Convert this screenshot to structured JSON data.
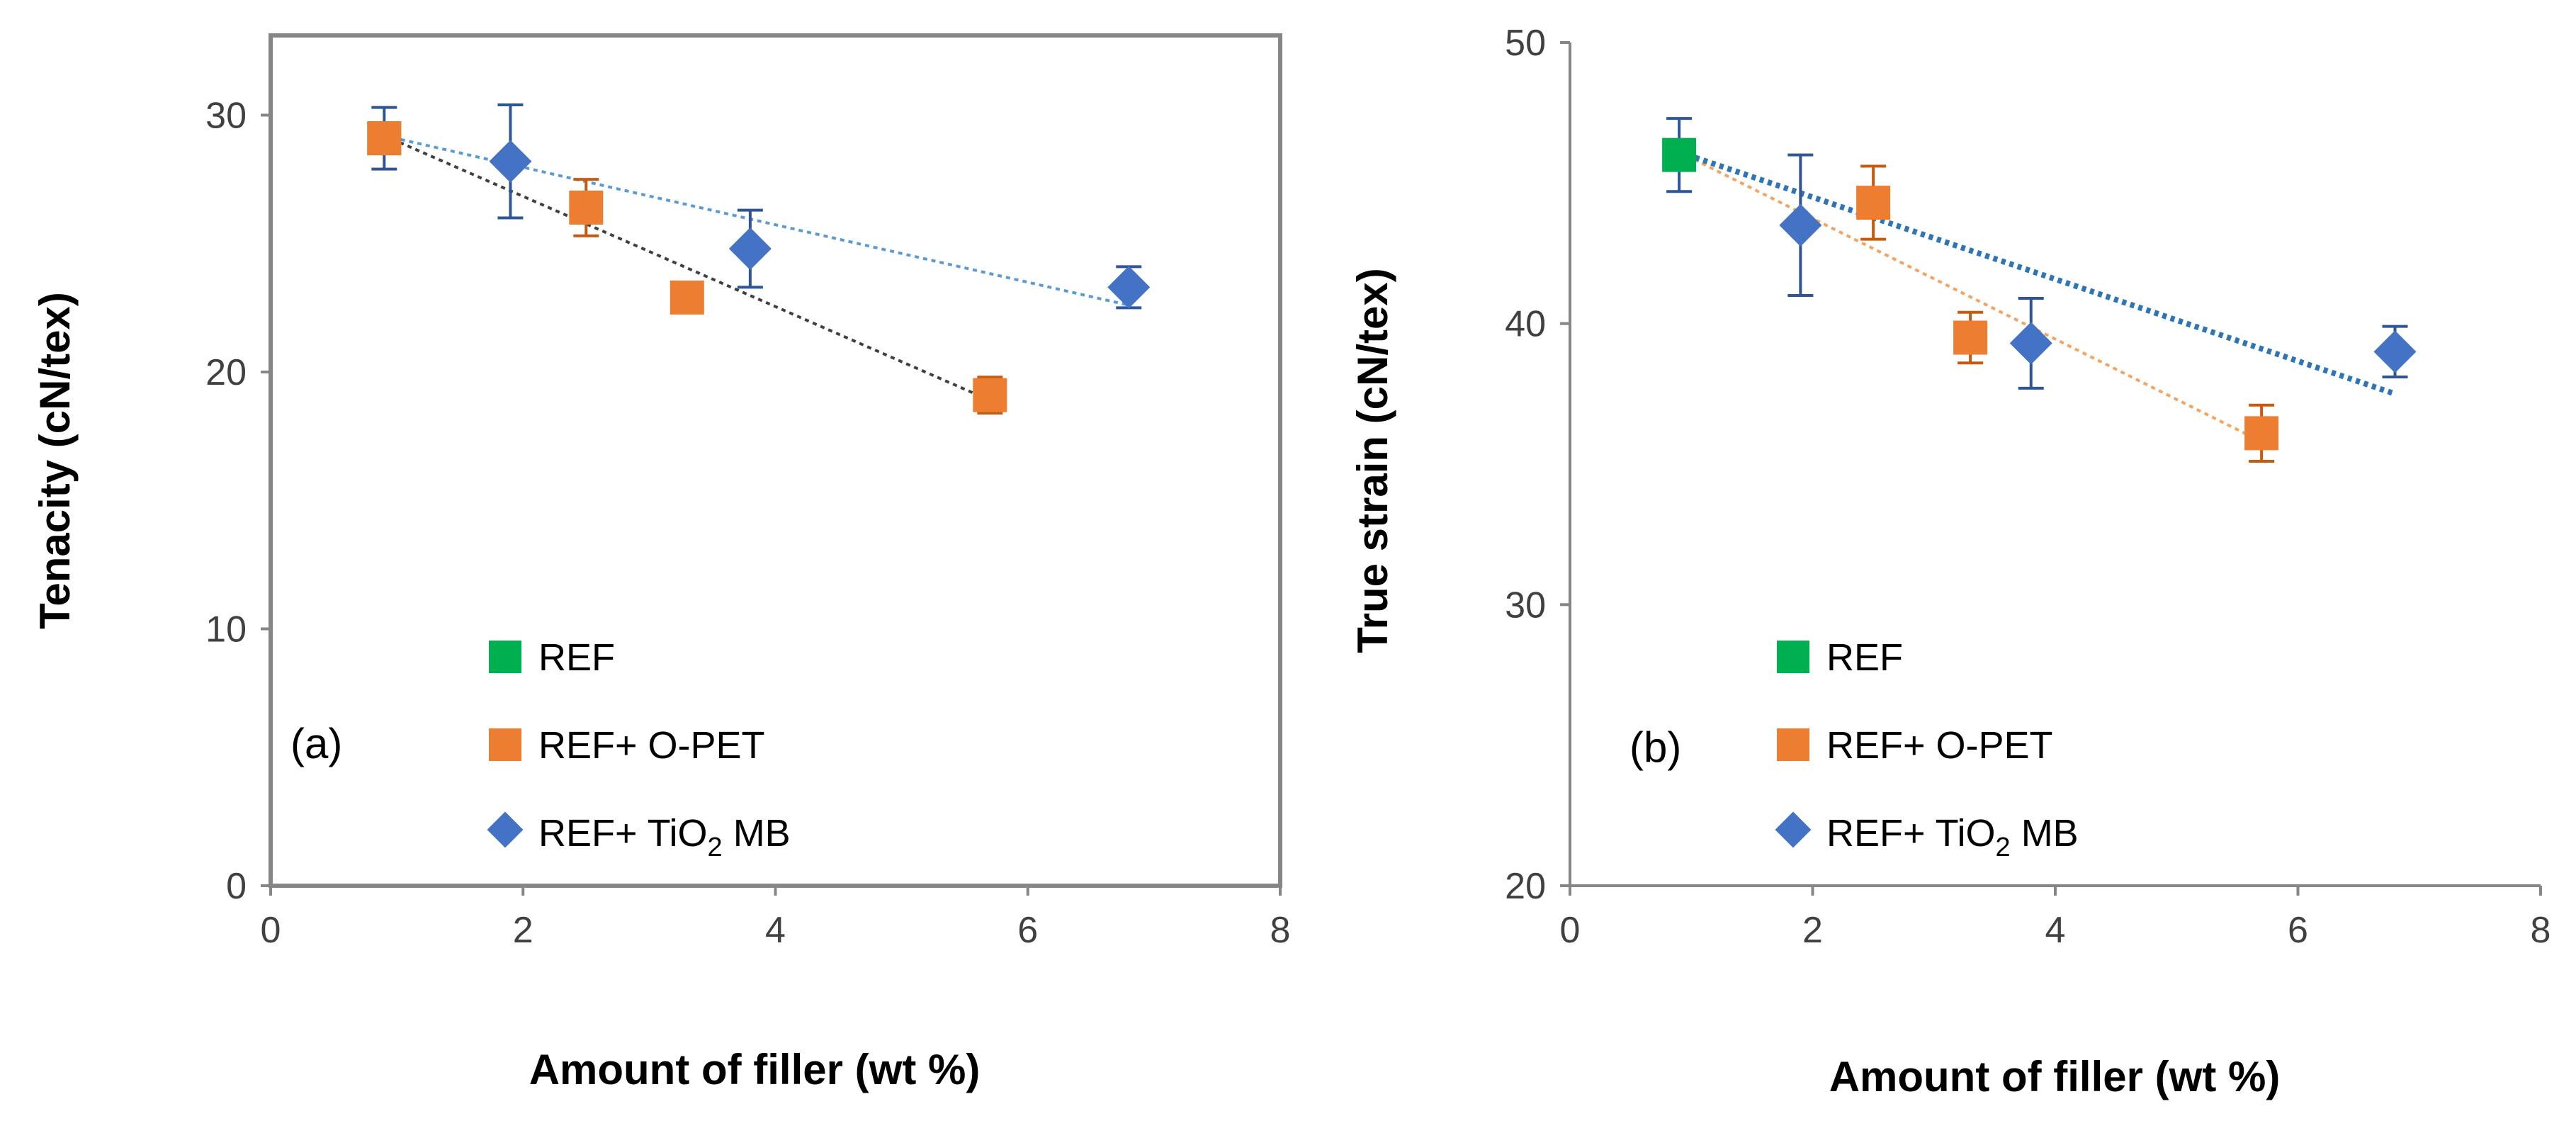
{
  "colors": {
    "REF": "#00b050",
    "REF+ O-PET": "#ed7d31",
    "REF+ TiO2 MB": "#4472c4",
    "error_bar": "#2e5597",
    "trend_opet_a": "#404040",
    "trend_tio2_a": "#5b9bd5",
    "trend_opet_b": "#f4a460",
    "trend_tio2_b": "#2e75b6"
  },
  "chart_data": [
    {
      "type": "scatter",
      "panel_label": "(a)",
      "xlabel": "Amount of filler (wt %)",
      "ylabel": "Tenacity (cN/tex)",
      "xlim": [
        0,
        8
      ],
      "ylim": [
        0,
        32
      ],
      "x_ticks": [
        0,
        2,
        4,
        6,
        8
      ],
      "y_ticks": [
        0,
        10,
        20,
        30
      ],
      "legend_position": "lower-center",
      "grid": false,
      "series": [
        {
          "name": "REF",
          "marker": "square",
          "points": [
            {
              "x": 0.9,
              "y": 29.1,
              "err": 1.2
            }
          ]
        },
        {
          "name": "REF+ O-PET",
          "marker": "square",
          "points": [
            {
              "x": 0.9,
              "y": 29.1,
              "err": 0
            },
            {
              "x": 2.5,
              "y": 26.4,
              "err": 1.1
            },
            {
              "x": 3.3,
              "y": 22.9,
              "err": 0.6
            },
            {
              "x": 5.7,
              "y": 19.1,
              "err": 0.7
            }
          ]
        },
        {
          "name": "REF+ TiO2 MB",
          "marker": "diamond",
          "points": [
            {
              "x": 1.9,
              "y": 28.2,
              "err": 2.2
            },
            {
              "x": 3.8,
              "y": 24.8,
              "err": 1.5
            },
            {
              "x": 6.8,
              "y": 23.3,
              "err": 0.8
            }
          ]
        }
      ],
      "trendlines": [
        {
          "series": "REF+ O-PET",
          "x": [
            0.9,
            5.7
          ],
          "y": [
            29.2,
            18.9
          ]
        },
        {
          "series": "REF+ TiO2 MB",
          "x": [
            0.9,
            6.8
          ],
          "y": [
            29.2,
            22.6
          ]
        }
      ]
    },
    {
      "type": "scatter",
      "panel_label": "(b)",
      "xlabel": "Amount of filler (wt %)",
      "ylabel": "True strain (cN/tex)",
      "xlim": [
        0,
        8
      ],
      "ylim": [
        20,
        50
      ],
      "x_ticks": [
        0,
        2,
        4,
        6,
        8
      ],
      "y_ticks": [
        20,
        30,
        40,
        50
      ],
      "legend_position": "lower-center",
      "grid": false,
      "series": [
        {
          "name": "REF",
          "marker": "square",
          "points": [
            {
              "x": 0.9,
              "y": 46.0,
              "err": 1.3
            }
          ]
        },
        {
          "name": "REF+ O-PET",
          "marker": "square",
          "points": [
            {
              "x": 2.5,
              "y": 44.3,
              "err": 1.3
            },
            {
              "x": 3.3,
              "y": 39.5,
              "err": 0.9
            },
            {
              "x": 5.7,
              "y": 36.1,
              "err": 1.0
            }
          ]
        },
        {
          "name": "REF+ TiO2 MB",
          "marker": "diamond",
          "points": [
            {
              "x": 1.9,
              "y": 43.5,
              "err": 2.5
            },
            {
              "x": 3.8,
              "y": 39.3,
              "err": 1.6
            },
            {
              "x": 6.8,
              "y": 39.0,
              "err": 0.9
            }
          ]
        }
      ],
      "trendlines": [
        {
          "series": "REF+ O-PET",
          "x": [
            0.9,
            5.7
          ],
          "y": [
            46.1,
            35.8
          ]
        },
        {
          "series": "REF+ TiO2 MB",
          "x": [
            0.9,
            6.8
          ],
          "y": [
            46.1,
            37.5
          ]
        }
      ]
    }
  ],
  "legend": {
    "items": [
      {
        "label": "REF",
        "marker": "square",
        "color": "#00b050"
      },
      {
        "label": "REF+ O-PET",
        "marker": "square",
        "color": "#ed7d31"
      },
      {
        "label_prefix": "REF+ TiO",
        "label_sub": "2",
        "label_suffix": " MB",
        "marker": "diamond",
        "color": "#4472c4"
      }
    ]
  }
}
